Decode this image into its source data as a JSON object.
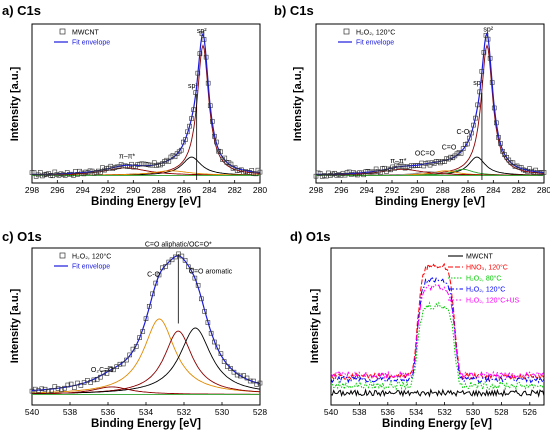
{
  "chart_data": [
    {
      "id": "a",
      "panel_label": "a) C1s",
      "type": "line",
      "xlabel": "Binding Energy [eV]",
      "ylabel": "Intensity [a.u.]",
      "xlim": [
        298,
        280
      ],
      "xticks": [
        298,
        296,
        294,
        292,
        290,
        288,
        286,
        284,
        282,
        280
      ],
      "legend": {
        "placement": "top-left",
        "entries": [
          {
            "label": "MWCNT",
            "color": "#000000",
            "style": "square"
          },
          {
            "label": "Fit envelope",
            "color": "#1a1adb",
            "style": "line"
          }
        ]
      },
      "annotations": [
        {
          "text": "sp²",
          "x": 284.6,
          "y": 0.96
        },
        {
          "text": "sp³",
          "x": 285.3,
          "y": 0.6
        },
        {
          "text": "π–π*",
          "x": 290.5,
          "y": 0.14
        }
      ],
      "vline": {
        "x": 285.0,
        "y_from": 0.0,
        "y_to": 0.56
      },
      "baseline": 0.03,
      "peaks": [
        {
          "center": 284.5,
          "height": 0.85,
          "width": 0.55,
          "color": "#8b0000"
        },
        {
          "center": 285.4,
          "height": 0.12,
          "width": 0.9,
          "color": "#000000"
        },
        {
          "center": 290.6,
          "height": 0.05,
          "width": 2.0,
          "color": "#8b0000"
        },
        {
          "center": 287.0,
          "height": 0.03,
          "width": 1.8,
          "color": "#e08a00"
        }
      ]
    },
    {
      "id": "b",
      "panel_label": "b) C1s",
      "type": "line",
      "xlabel": "Binding Energy [eV]",
      "ylabel": "Intensity [a.u.]",
      "xlim": [
        298,
        280
      ],
      "xticks": [
        298,
        296,
        294,
        292,
        290,
        288,
        286,
        284,
        282,
        280
      ],
      "legend": {
        "placement": "top-left",
        "entries": [
          {
            "label": "H₂O₂, 120°C",
            "color": "#000000",
            "style": "square"
          },
          {
            "label": "Fit envelope",
            "color": "#1a1adb",
            "style": "line"
          }
        ]
      },
      "annotations": [
        {
          "text": "sp²",
          "x": 284.4,
          "y": 0.97
        },
        {
          "text": "sp³",
          "x": 285.2,
          "y": 0.62
        },
        {
          "text": "C-O",
          "x": 286.4,
          "y": 0.3
        },
        {
          "text": "C=O",
          "x": 287.5,
          "y": 0.2
        },
        {
          "text": "OC=O",
          "x": 289.4,
          "y": 0.16
        },
        {
          "text": "π–π*",
          "x": 291.5,
          "y": 0.11
        }
      ],
      "vline": {
        "x": 284.9,
        "y_from": 0.0,
        "y_to": 0.57
      },
      "baseline": 0.03,
      "peaks": [
        {
          "center": 284.5,
          "height": 0.85,
          "width": 0.55,
          "color": "#8b0000"
        },
        {
          "center": 285.3,
          "height": 0.12,
          "width": 0.8,
          "color": "#000000"
        },
        {
          "center": 286.4,
          "height": 0.04,
          "width": 1.0,
          "color": "#2ca02c"
        },
        {
          "center": 287.8,
          "height": 0.03,
          "width": 1.2,
          "color": "#e08a00"
        },
        {
          "center": 289.1,
          "height": 0.025,
          "width": 1.2,
          "color": "#999999"
        },
        {
          "center": 291.2,
          "height": 0.04,
          "width": 2.0,
          "color": "#8b0000"
        }
      ]
    },
    {
      "id": "c",
      "panel_label": "c) O1s",
      "type": "line",
      "xlabel": "Binding Energy [eV]",
      "ylabel": "Intensity [a.u.]",
      "xlim": [
        540,
        528
      ],
      "xticks": [
        540,
        538,
        536,
        534,
        532,
        530,
        528
      ],
      "legend": {
        "placement": "top-left",
        "entries": [
          {
            "label": "H₂O₂, 120°C",
            "color": "#000000",
            "style": "square"
          },
          {
            "label": "Fit envelope",
            "color": "#1a1adb",
            "style": "line"
          }
        ]
      },
      "annotations": [
        {
          "text": "C=O aliphatic/OC=O*",
          "x": 532.3,
          "y": 1.03
        },
        {
          "text": "C-O",
          "x": 533.6,
          "y": 0.83
        },
        {
          "text": "C=O aromatic",
          "x": 530.6,
          "y": 0.85
        },
        {
          "text": "O₂C=O",
          "x": 536.3,
          "y": 0.2
        }
      ],
      "vline": {
        "x": 532.3,
        "y_from": 0.52,
        "y_to": 0.98
      },
      "baseline": 0.05,
      "peaks": [
        {
          "center": 533.3,
          "height": 0.5,
          "width": 1.0,
          "color": "#e08a00"
        },
        {
          "center": 532.3,
          "height": 0.42,
          "width": 0.9,
          "color": "#8b0000"
        },
        {
          "center": 531.4,
          "height": 0.44,
          "width": 1.0,
          "color": "#000000"
        },
        {
          "center": 535.8,
          "height": 0.05,
          "width": 1.2,
          "color": "#8b0000"
        }
      ]
    },
    {
      "id": "d",
      "panel_label": "d) O1s",
      "type": "line",
      "xlabel": "Binding Energy [eV]",
      "ylabel": "Intensity [a.u.]",
      "xlim": [
        540,
        525
      ],
      "xticks": [
        540,
        538,
        536,
        534,
        532,
        530,
        528,
        526
      ],
      "legend": {
        "placement": "top-right",
        "entries": [
          {
            "label": "MWCNT",
            "color": "#000000",
            "style": "solid"
          },
          {
            "label": "HNO₃, 120°C",
            "color": "#ff0000",
            "style": "dashed"
          },
          {
            "label": "H₂O₂, 80°C",
            "color": "#00cc00",
            "style": "dotted"
          },
          {
            "label": "H₂O₂, 120°C",
            "color": "#0000ff",
            "style": "dashdot"
          },
          {
            "label": "H₂O₂, 120°C+US",
            "color": "#ff00ff",
            "style": "dashdotdot"
          }
        ]
      },
      "series": [
        {
          "name": "MWCNT",
          "color": "#000000",
          "dash": "",
          "base": 0.06,
          "height": 0.0,
          "noise": 0.02
        },
        {
          "name": "HNO₃, 120°C",
          "color": "#ff0000",
          "dash": "5,2",
          "base": 0.17,
          "height": 0.73,
          "noise": 0.02
        },
        {
          "name": "H₂O₂, 80°C",
          "color": "#00cc00",
          "dash": "1.5,1.5",
          "base": 0.11,
          "height": 0.53,
          "noise": 0.025
        },
        {
          "name": "H₂O₂, 120°C",
          "color": "#0000ff",
          "dash": "6,2,1.5,2",
          "base": 0.15,
          "height": 0.66,
          "noise": 0.02
        },
        {
          "name": "H₂O₂, 120°C+US",
          "color": "#ff00ff",
          "dash": "6,2,1.5,2,1.5,2",
          "base": 0.18,
          "height": 0.58,
          "noise": 0.02
        }
      ]
    }
  ]
}
